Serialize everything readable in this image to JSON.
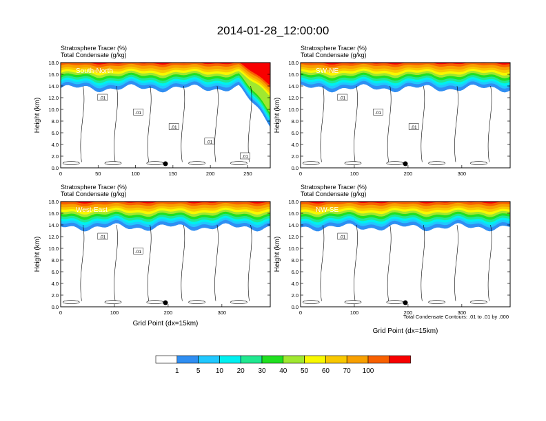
{
  "title": "2014-01-28_12:00:00",
  "x_axis_label": "Grid Point (dx=15km)",
  "y_axis_label": "Height (km)",
  "contour_note": "Total Condensate Contours: .01 to .01 by .000",
  "chart_data": [
    {
      "type": "heatmap",
      "panel": "South-North",
      "field_label_1": "Stratosphere Tracer   (%)",
      "field_label_2": "Total Condensate   (g/kg)",
      "xlim": [
        0,
        280
      ],
      "ylim": [
        0,
        18
      ],
      "xticks": [
        0,
        50,
        100,
        150,
        200,
        250
      ],
      "yticks": [
        "0.0",
        "2.0",
        "4.0",
        "6.0",
        "8.0",
        "10.0",
        "12.0",
        "14.0",
        "16.0",
        "18.0"
      ],
      "contour_labels": [
        ".01",
        ".01",
        ".01",
        ".01",
        ".01"
      ],
      "marker_x": 140
    },
    {
      "type": "heatmap",
      "panel": "SW-NE",
      "field_label_1": "Stratosphere Tracer   (%)",
      "field_label_2": "Total Condensate   (g/kg)",
      "xlim": [
        0,
        390
      ],
      "ylim": [
        0,
        18
      ],
      "xticks": [
        0,
        100,
        200,
        300
      ],
      "yticks": [
        "0.0",
        "2.0",
        "4.0",
        "6.0",
        "8.0",
        "10.0",
        "12.0",
        "14.0",
        "16.0",
        "18.0"
      ],
      "contour_labels": [
        ".01",
        ".01",
        ".01"
      ],
      "marker_x": 195
    },
    {
      "type": "heatmap",
      "panel": "West-East",
      "field_label_1": "Stratosphere Tracer   (%)",
      "field_label_2": "Total Condensate   (g/kg)",
      "xlim": [
        0,
        390
      ],
      "ylim": [
        0,
        18
      ],
      "xticks": [
        0,
        100,
        200,
        300
      ],
      "yticks": [
        "0.0",
        "2.0",
        "4.0",
        "6.0",
        "8.0",
        "10.0",
        "12.0",
        "14.0",
        "16.0",
        "18.0"
      ],
      "contour_labels": [
        ".01",
        ".01"
      ],
      "marker_x": 195
    },
    {
      "type": "heatmap",
      "panel": "NW-SE",
      "field_label_1": "Stratosphere Tracer   (%)",
      "field_label_2": "Total Condensate   (g/kg)",
      "xlim": [
        0,
        390
      ],
      "ylim": [
        0,
        18
      ],
      "xticks": [
        0,
        100,
        200,
        300
      ],
      "yticks": [
        "0.0",
        "2.0",
        "4.0",
        "6.0",
        "8.0",
        "10.0",
        "12.0",
        "14.0",
        "16.0",
        "18.0"
      ],
      "contour_labels": [
        ".01"
      ],
      "marker_x": 195
    }
  ],
  "colorbar": {
    "labels": [
      "1",
      "5",
      "10",
      "20",
      "30",
      "40",
      "50",
      "60",
      "70",
      "100"
    ],
    "colors": [
      "#ffffff",
      "#2f8ef2",
      "#20c8ff",
      "#00f0f0",
      "#20e890",
      "#20e020",
      "#a0e830",
      "#f8f800",
      "#f8c800",
      "#f8a000",
      "#f86000",
      "#f80000"
    ]
  }
}
